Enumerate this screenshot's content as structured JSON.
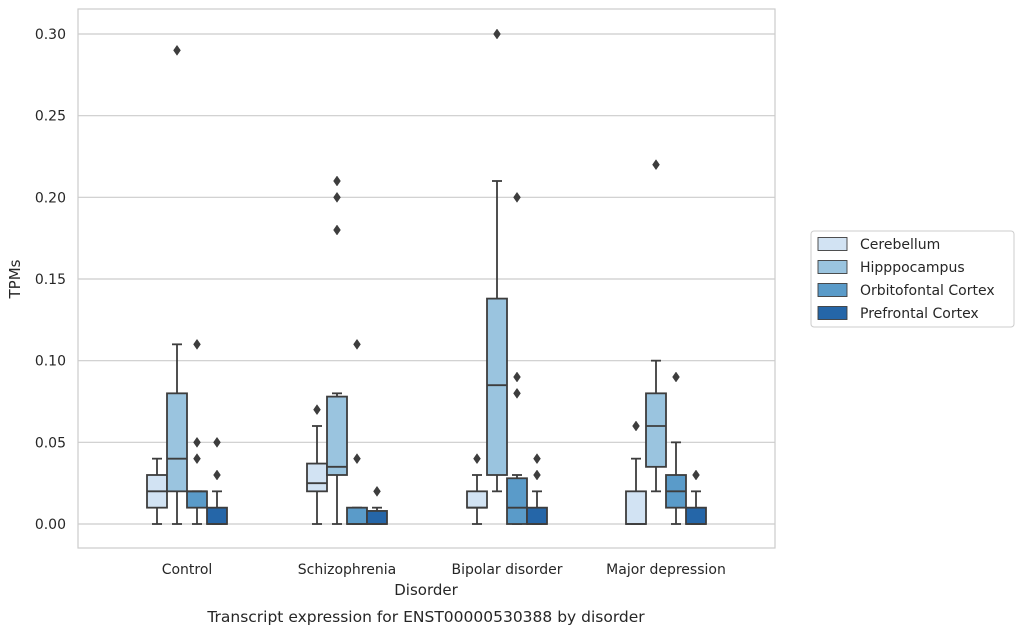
{
  "chart_data": {
    "type": "box",
    "xlabel": "Disorder",
    "ylabel": "TPMs",
    "caption": "Transcript expression for ENST00000530388 by disorder",
    "ylim": [
      -0.015,
      0.315
    ],
    "yticks": [
      "0.00",
      "0.05",
      "0.10",
      "0.15",
      "0.20",
      "0.25",
      "0.30"
    ],
    "grid": "horizontal",
    "legend_position": "right",
    "categories": [
      "Control",
      "Schizophrenia",
      "Bipolar disorder",
      "Major depression"
    ],
    "series": [
      {
        "name": "Cerebellum",
        "color": "#d2e3f3",
        "boxes": [
          {
            "whislo": 0.0,
            "q1": 0.01,
            "med": 0.02,
            "q3": 0.03,
            "whishi": 0.04,
            "fliers": []
          },
          {
            "whislo": 0.0,
            "q1": 0.02,
            "med": 0.025,
            "q3": 0.037,
            "whishi": 0.06,
            "fliers": [
              0.07
            ]
          },
          {
            "whislo": 0.0,
            "q1": 0.01,
            "med": 0.01,
            "q3": 0.02,
            "whishi": 0.03,
            "fliers": [
              0.04
            ]
          },
          {
            "whislo": 0.0,
            "q1": 0.0,
            "med": 0.0,
            "q3": 0.02,
            "whishi": 0.04,
            "fliers": [
              0.06
            ]
          }
        ]
      },
      {
        "name": "Hipppocampus",
        "color": "#9ac4df",
        "boxes": [
          {
            "whislo": 0.0,
            "q1": 0.02,
            "med": 0.04,
            "q3": 0.08,
            "whishi": 0.11,
            "fliers": [
              0.29
            ]
          },
          {
            "whislo": 0.0,
            "q1": 0.03,
            "med": 0.035,
            "q3": 0.078,
            "whishi": 0.08,
            "fliers": [
              0.2,
              0.18,
              0.21
            ]
          },
          {
            "whislo": 0.02,
            "q1": 0.03,
            "med": 0.085,
            "q3": 0.138,
            "whishi": 0.21,
            "fliers": [
              0.3
            ]
          },
          {
            "whislo": 0.02,
            "q1": 0.035,
            "med": 0.06,
            "q3": 0.08,
            "whishi": 0.1,
            "fliers": [
              0.22
            ]
          }
        ]
      },
      {
        "name": "Orbitofontal Cortex",
        "color": "#5a9bc9",
        "boxes": [
          {
            "whislo": 0.0,
            "q1": 0.01,
            "med": 0.02,
            "q3": 0.02,
            "whishi": 0.02,
            "fliers": [
              0.11,
              0.05,
              0.04
            ]
          },
          {
            "whislo": 0.0,
            "q1": 0.0,
            "med": 0.0,
            "q3": 0.01,
            "whishi": 0.01,
            "fliers": [
              0.11,
              0.04
            ]
          },
          {
            "whislo": 0.0,
            "q1": 0.0,
            "med": 0.01,
            "q3": 0.028,
            "whishi": 0.03,
            "fliers": [
              0.2,
              0.09,
              0.08
            ]
          },
          {
            "whislo": 0.0,
            "q1": 0.01,
            "med": 0.02,
            "q3": 0.03,
            "whishi": 0.05,
            "fliers": [
              0.09
            ]
          }
        ]
      },
      {
        "name": "Prefrontal Cortex",
        "color": "#2566a8",
        "boxes": [
          {
            "whislo": 0.0,
            "q1": 0.0,
            "med": 0.0,
            "q3": 0.01,
            "whishi": 0.02,
            "fliers": [
              0.05,
              0.03
            ]
          },
          {
            "whislo": 0.0,
            "q1": 0.0,
            "med": 0.0,
            "q3": 0.008,
            "whishi": 0.01,
            "fliers": [
              0.02
            ]
          },
          {
            "whislo": 0.0,
            "q1": 0.0,
            "med": 0.0,
            "q3": 0.01,
            "whishi": 0.02,
            "fliers": [
              0.04,
              0.03
            ]
          },
          {
            "whislo": 0.0,
            "q1": 0.0,
            "med": 0.0,
            "q3": 0.01,
            "whishi": 0.02,
            "fliers": [
              0.03
            ]
          }
        ]
      }
    ]
  }
}
